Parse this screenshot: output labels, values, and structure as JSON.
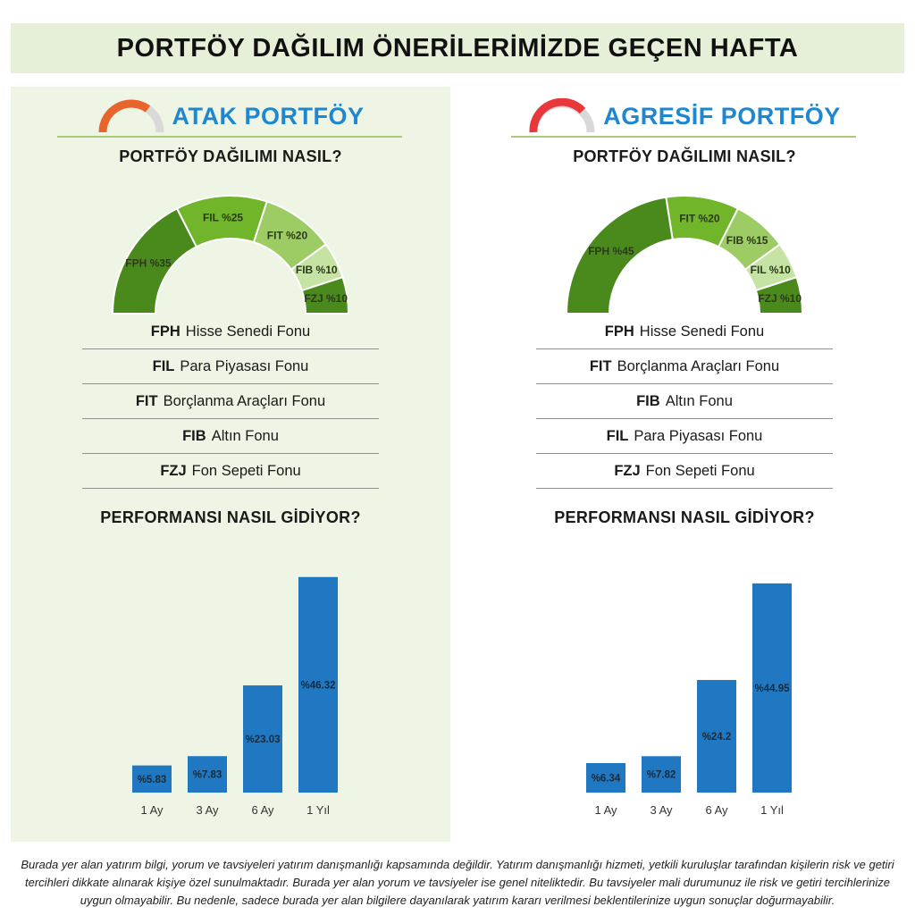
{
  "title": "PORTFÖY DAĞILIM ÖNERİLERİMİZDE GEÇEN HAFTA",
  "colors": {
    "accent": "#1d87d0",
    "bar": "#1f78c1",
    "green_dark": "#4a8a1c",
    "green_mid": "#71b52a",
    "green_light": "#9ccc63",
    "green_pale": "#c5e3a3"
  },
  "panels": [
    {
      "name": "ATAK PORTFÖY",
      "gauge_icon": {
        "arc_color": "#e9642a"
      },
      "distribution_heading": "PORTFÖY DAĞILIMI NASIL?",
      "performance_heading": "PERFORMANSI NASIL GİDİYOR?",
      "segments": [
        {
          "label": "FPH %35",
          "value": 35,
          "color": "#4a8a1c"
        },
        {
          "label": "FIL %25",
          "value": 25,
          "color": "#71b52a"
        },
        {
          "label": "FIT %20",
          "value": 20,
          "color": "#9ccc63"
        },
        {
          "label": "FIB %10",
          "value": 10,
          "color": "#c5e3a3"
        },
        {
          "label": "FZJ %10",
          "value": 10,
          "color": "#4a8a1c"
        }
      ],
      "funds": [
        {
          "code": "FPH",
          "name": "Hisse Senedi Fonu"
        },
        {
          "code": "FIL",
          "name": "Para Piyasası Fonu"
        },
        {
          "code": "FIT",
          "name": "Borçlanma Araçları Fonu"
        },
        {
          "code": "FIB",
          "name": "Altın Fonu"
        },
        {
          "code": "FZJ",
          "name": "Fon Sepeti Fonu"
        }
      ]
    },
    {
      "name": "AGRESİF PORTFÖY",
      "gauge_icon": {
        "arc_color": "#e8383c"
      },
      "distribution_heading": "PORTFÖY DAĞILIMI NASIL?",
      "performance_heading": "PERFORMANSI NASIL GİDİYOR?",
      "segments": [
        {
          "label": "FPH %45",
          "value": 45,
          "color": "#4a8a1c"
        },
        {
          "label": "FIT %20",
          "value": 20,
          "color": "#71b52a"
        },
        {
          "label": "FIB %15",
          "value": 15,
          "color": "#9ccc63"
        },
        {
          "label": "FIL %10",
          "value": 10,
          "color": "#c5e3a3"
        },
        {
          "label": "FZJ %10",
          "value": 10,
          "color": "#4a8a1c"
        }
      ],
      "funds": [
        {
          "code": "FPH",
          "name": "Hisse Senedi Fonu"
        },
        {
          "code": "FIT",
          "name": "Borçlanma Araçları Fonu"
        },
        {
          "code": "FIB",
          "name": "Altın Fonu"
        },
        {
          "code": "FIL",
          "name": "Para Piyasası Fonu"
        },
        {
          "code": "FZJ",
          "name": "Fon Sepeti Fonu"
        }
      ]
    }
  ],
  "chart_data": [
    {
      "type": "bar",
      "categories": [
        "1 Ay",
        "3 Ay",
        "6 Ay",
        "1 Yıl"
      ],
      "values": [
        5.83,
        7.83,
        23.03,
        46.32
      ],
      "data_labels": [
        "%5.83",
        "%7.83",
        "%23.03",
        "%46.32"
      ],
      "title": "",
      "xlabel": "",
      "ylabel": "",
      "ylim": [
        0,
        48
      ],
      "grid": false
    },
    {
      "type": "bar",
      "categories": [
        "1 Ay",
        "3 Ay",
        "6 Ay",
        "1 Yıl"
      ],
      "values": [
        6.34,
        7.82,
        24.2,
        44.95
      ],
      "data_labels": [
        "%6.34",
        "%7.82",
        "%24.2",
        "%44.95"
      ],
      "title": "",
      "xlabel": "",
      "ylabel": "",
      "ylim": [
        0,
        48
      ],
      "grid": false
    }
  ],
  "disclaimer": "Burada yer alan yatırım bilgi, yorum ve tavsiyeleri yatırım danışmanlığı kapsamında değildir. Yatırım danışmanlığı hizmeti, yetkili kuruluşlar tarafından kişilerin risk ve getiri tercihleri dikkate alınarak kişiye özel sunulmaktadır. Burada yer alan yorum ve tavsiyeler ise genel niteliktedir. Bu tavsiyeler mali durumunuz ile risk ve getiri tercihlerinize uygun olmayabilir. Bu nedenle, sadece burada yer alan bilgilere dayanılarak yatırım kararı verilmesi beklentilerinize uygun sonuçlar doğurmayabilir."
}
